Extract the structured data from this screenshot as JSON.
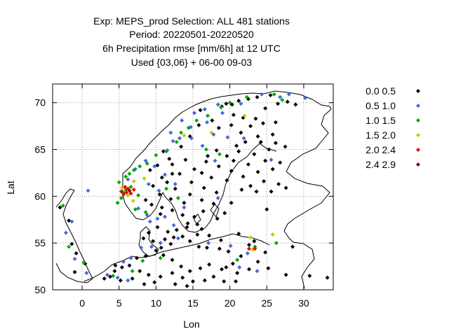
{
  "chart_data": {
    "type": "scatter",
    "title": [
      "Exp: MEPS_prod   Selection: ALL    481 stations",
      "Period: 20220501-20220520",
      "6h Precipitation rmse [mm/6h] at  12 UTC",
      "Used {03,06} + 06-00 09-03"
    ],
    "xlabel": "Lon",
    "ylabel": "Lat",
    "xlim": [
      -4,
      34
    ],
    "ylim": [
      50,
      72
    ],
    "xticks": [
      0,
      5,
      10,
      15,
      20,
      25,
      30
    ],
    "yticks": [
      50,
      55,
      60,
      65,
      70
    ],
    "grid": true,
    "legend_position": "right",
    "series": [
      {
        "name": "0.0 0.5",
        "color": "#000000",
        "points": [
          [
            16,
            69.2
          ],
          [
            18.9,
            69.6
          ],
          [
            19.5,
            69.9
          ],
          [
            20.3,
            69.8
          ],
          [
            21.2,
            70.2
          ],
          [
            22.5,
            70.4
          ],
          [
            23.7,
            70.6
          ],
          [
            25.5,
            70.8
          ],
          [
            24.8,
            69.4
          ],
          [
            26.5,
            69.9
          ],
          [
            27.8,
            70.1
          ],
          [
            28.9,
            69.8
          ],
          [
            20.5,
            68.7
          ],
          [
            21.8,
            68.4
          ],
          [
            23.5,
            68.3
          ],
          [
            24.5,
            67.8
          ],
          [
            26.2,
            67.9
          ],
          [
            22.8,
            67.5
          ],
          [
            20.2,
            67.6
          ],
          [
            18.5,
            67.3
          ],
          [
            21.5,
            66.8
          ],
          [
            23.8,
            66.4
          ],
          [
            25.8,
            66.6
          ],
          [
            22.1,
            65.8
          ],
          [
            20.9,
            65.4
          ],
          [
            24.2,
            65.8
          ],
          [
            26.2,
            65.7
          ],
          [
            27.5,
            65.3
          ],
          [
            25.3,
            65.0
          ],
          [
            23.3,
            64.5
          ],
          [
            21.2,
            64.8
          ],
          [
            19.6,
            64.3
          ],
          [
            18.2,
            64.9
          ],
          [
            17.0,
            64.3
          ],
          [
            20.5,
            63.8
          ],
          [
            22.5,
            63.4
          ],
          [
            24.8,
            63.8
          ],
          [
            26.8,
            63.6
          ],
          [
            25.8,
            62.9
          ],
          [
            23.8,
            62.6
          ],
          [
            21.8,
            62.1
          ],
          [
            20.2,
            62.7
          ],
          [
            18.5,
            63.2
          ],
          [
            16.8,
            63.7
          ],
          [
            16.2,
            62.5
          ],
          [
            17.5,
            62.0
          ],
          [
            19.6,
            61.7
          ],
          [
            22.8,
            61.1
          ],
          [
            24.6,
            61.6
          ],
          [
            26.6,
            61.3
          ],
          [
            27.6,
            60.9
          ],
          [
            25.6,
            60.5
          ],
          [
            23.6,
            60.5
          ],
          [
            21.6,
            60.7
          ],
          [
            18.2,
            60.4
          ],
          [
            16.5,
            60.9
          ],
          [
            14.8,
            61.5
          ],
          [
            13.2,
            62.4
          ],
          [
            12.2,
            63.4
          ],
          [
            14.0,
            63.9
          ],
          [
            15.2,
            62.9
          ],
          [
            11.5,
            61.5
          ],
          [
            12.6,
            60.8
          ],
          [
            14.6,
            60.2
          ],
          [
            16.2,
            59.6
          ],
          [
            17.8,
            59.2
          ],
          [
            13.8,
            59.3
          ],
          [
            12.0,
            59.7
          ],
          [
            10.5,
            60.2
          ],
          [
            9.6,
            61.1
          ],
          [
            10.8,
            62.0
          ],
          [
            9.2,
            62.8
          ],
          [
            10.2,
            63.3
          ],
          [
            8.6,
            59.6
          ],
          [
            9.4,
            59.1
          ],
          [
            10.8,
            58.8
          ],
          [
            12.2,
            58.5
          ],
          [
            13.6,
            58.0
          ],
          [
            15.2,
            57.8
          ],
          [
            16.4,
            58.4
          ],
          [
            18.3,
            57.6
          ],
          [
            15.6,
            57.0
          ],
          [
            14.2,
            56.7
          ],
          [
            12.8,
            56.4
          ],
          [
            13.6,
            55.7
          ],
          [
            11.6,
            56.2
          ],
          [
            10.2,
            56.7
          ],
          [
            9.0,
            56.1
          ],
          [
            8.3,
            55.5
          ],
          [
            9.6,
            55.2
          ],
          [
            11.2,
            55.4
          ],
          [
            12.4,
            55.6
          ],
          [
            14.6,
            55.2
          ],
          [
            15.8,
            54.6
          ],
          [
            16.9,
            54.5
          ],
          [
            18.6,
            54.4
          ],
          [
            19.8,
            54.1
          ],
          [
            21.5,
            53.6
          ],
          [
            20.4,
            52.8
          ],
          [
            22.6,
            52.2
          ],
          [
            23.8,
            53.0
          ],
          [
            21.0,
            51.8
          ],
          [
            18.9,
            52.2
          ],
          [
            17.2,
            52.7
          ],
          [
            16.0,
            52.3
          ],
          [
            14.6,
            52.0
          ],
          [
            13.4,
            52.5
          ],
          [
            12.2,
            53.2
          ],
          [
            11.0,
            53.7
          ],
          [
            10.0,
            54.2
          ],
          [
            8.6,
            53.6
          ],
          [
            7.4,
            53.4
          ],
          [
            6.4,
            52.6
          ],
          [
            5.4,
            52.4
          ],
          [
            4.4,
            52.0
          ],
          [
            7.8,
            52.0
          ],
          [
            9.0,
            51.6
          ],
          [
            10.6,
            51.4
          ],
          [
            12.2,
            51.8
          ],
          [
            13.6,
            51.3
          ],
          [
            15.0,
            50.9
          ],
          [
            16.6,
            51.0
          ],
          [
            17.8,
            51.4
          ],
          [
            19.2,
            50.9
          ],
          [
            20.8,
            50.9
          ],
          [
            14.2,
            50.4
          ],
          [
            12.6,
            50.6
          ],
          [
            9.8,
            50.8
          ],
          [
            8.4,
            50.6
          ],
          [
            6.8,
            51.2
          ],
          [
            5.2,
            51.0
          ],
          [
            3.8,
            51.4
          ],
          [
            30.8,
            51.5
          ],
          [
            33.2,
            51.3
          ],
          [
            28.5,
            54.6
          ],
          [
            27.6,
            51.6
          ],
          [
            25.2,
            52.3
          ],
          [
            24.8,
            54.0
          ],
          [
            22.6,
            54.8
          ],
          [
            18.8,
            55.3
          ],
          [
            17.2,
            55.8
          ],
          [
            15.6,
            55.9
          ],
          [
            12.0,
            54.9
          ],
          [
            10.7,
            54.5
          ],
          [
            4.5,
            52.6
          ],
          [
            3.0,
            51.2
          ],
          [
            -3.0,
            58.8
          ],
          [
            -1.8,
            57.4
          ],
          [
            -1.4,
            54.9
          ],
          [
            -0.8,
            53.9
          ],
          [
            0.4,
            52.8
          ],
          [
            -1.0,
            51.9
          ],
          [
            11.0,
            64.8
          ],
          [
            13.4,
            65.3
          ],
          [
            14.6,
            66.4
          ],
          [
            15.8,
            67.6
          ],
          [
            17.6,
            68.1
          ],
          [
            12.2,
            62.4
          ],
          [
            11.8,
            64.0
          ],
          [
            10.6,
            58.1
          ],
          [
            16.2,
            56.5
          ],
          [
            14.3,
            57.1
          ],
          [
            19.3,
            58.2
          ],
          [
            20.2,
            59.3
          ],
          [
            25.0,
            58.6
          ],
          [
            21.2,
            56.0
          ],
          [
            23.3,
            55.2
          ],
          [
            19.5,
            52.4
          ]
        ]
      },
      {
        "name": "0.5 1.0",
        "color": "#4169e1",
        "points": [
          [
            13.5,
            68.1
          ],
          [
            15.2,
            68.9
          ],
          [
            16.6,
            69.3
          ],
          [
            18.4,
            69.8
          ],
          [
            14.7,
            67.4
          ],
          [
            13.2,
            66.2
          ],
          [
            12.3,
            65.9
          ],
          [
            11.4,
            64.8
          ],
          [
            12.0,
            66.8
          ],
          [
            14.8,
            66.2
          ],
          [
            17.8,
            66.6
          ],
          [
            16.9,
            67.9
          ],
          [
            26.8,
            70.6
          ],
          [
            28.0,
            70.9
          ],
          [
            30.2,
            70.5
          ],
          [
            24.3,
            70.9
          ],
          [
            21.5,
            69.9
          ],
          [
            19.0,
            68.9
          ],
          [
            8.6,
            63.8
          ],
          [
            9.8,
            63.2
          ],
          [
            7.2,
            62.9
          ],
          [
            6.2,
            61.8
          ],
          [
            9.0,
            61.3
          ],
          [
            10.4,
            60.6
          ],
          [
            11.2,
            62.3
          ],
          [
            12.6,
            61.3
          ],
          [
            7.6,
            58.7
          ],
          [
            8.8,
            58.0
          ],
          [
            9.2,
            57.3
          ],
          [
            10.2,
            57.6
          ],
          [
            11.2,
            57.8
          ],
          [
            12.4,
            56.9
          ],
          [
            13.0,
            55.5
          ],
          [
            10.6,
            55.0
          ],
          [
            9.4,
            54.6
          ],
          [
            8.0,
            54.5
          ],
          [
            6.6,
            53.4
          ],
          [
            5.6,
            53.0
          ],
          [
            3.4,
            51.6
          ],
          [
            4.8,
            51.3
          ],
          [
            6.2,
            51.0
          ],
          [
            20.1,
            54.7
          ],
          [
            22.4,
            53.9
          ],
          [
            21.3,
            52.4
          ],
          [
            23.7,
            52.0
          ],
          [
            0.8,
            60.6
          ],
          [
            -1.4,
            57.3
          ],
          [
            -2.2,
            56.1
          ],
          [
            -1.0,
            53.3
          ],
          [
            0.6,
            51.8
          ],
          [
            16.3,
            65.4
          ],
          [
            18.0,
            63.8
          ],
          [
            21.9,
            66.2
          ],
          [
            19.7,
            66.3
          ],
          [
            25.6,
            63.9
          ],
          [
            13.8,
            58.8
          ],
          [
            18.4,
            59.8
          ],
          [
            17.1,
            55.0
          ]
        ]
      },
      {
        "name": "1.0 1.5",
        "color": "#00aa00",
        "points": [
          [
            4.8,
            59.3
          ],
          [
            5.3,
            59.8
          ],
          [
            5.6,
            60.4
          ],
          [
            5.0,
            61.5
          ],
          [
            5.9,
            62.1
          ],
          [
            6.4,
            62.4
          ],
          [
            7.0,
            62.8
          ],
          [
            7.8,
            63.2
          ],
          [
            8.8,
            63.5
          ],
          [
            10.0,
            64.4
          ],
          [
            11.5,
            64.9
          ],
          [
            12.8,
            65.8
          ],
          [
            13.4,
            66.8
          ],
          [
            14.4,
            67.3
          ],
          [
            15.5,
            68.1
          ],
          [
            17.0,
            68.6
          ],
          [
            18.8,
            69.5
          ],
          [
            20.0,
            70.0
          ],
          [
            22.3,
            70.6
          ],
          [
            26.0,
            70.9
          ],
          [
            27.1,
            70.3
          ],
          [
            5.9,
            60.7
          ],
          [
            6.6,
            61.0
          ],
          [
            7.6,
            60.1
          ],
          [
            7.2,
            58.6
          ],
          [
            8.6,
            58.3
          ],
          [
            -2.6,
            59.0
          ],
          [
            -1.8,
            54.6
          ],
          [
            0.2,
            52.9
          ],
          [
            4.2,
            51.5
          ],
          [
            6.8,
            52.0
          ],
          [
            8.2,
            53.1
          ],
          [
            10.6,
            53.4
          ],
          [
            21.0,
            53.2
          ],
          [
            23.4,
            54.6
          ],
          [
            26.3,
            55.0
          ],
          [
            16.8,
            65.0
          ],
          [
            18.6,
            64.5
          ],
          [
            11.4,
            60.8
          ],
          [
            13.0,
            59.8
          ]
        ]
      },
      {
        "name": "1.5 2.0",
        "color": "#c8c800",
        "points": [
          [
            22.0,
            68.6
          ],
          [
            17.5,
            66.8
          ],
          [
            6.2,
            60.1
          ],
          [
            5.4,
            60.9
          ],
          [
            7.0,
            61.6
          ],
          [
            25.8,
            55.9
          ],
          [
            22.8,
            55.6
          ],
          [
            23.1,
            54.3
          ],
          [
            8.4,
            61.9
          ],
          [
            13.8,
            66.5
          ],
          [
            6.9,
            59.5
          ]
        ]
      },
      {
        "name": "2.0 2.4",
        "color": "#ee0000",
        "points": [
          [
            5.3,
            60.5
          ],
          [
            5.8,
            61.0
          ],
          [
            6.2,
            60.8
          ],
          [
            6.6,
            60.3
          ],
          [
            5.6,
            60.2
          ],
          [
            7.0,
            60.7
          ],
          [
            6.0,
            60.4
          ],
          [
            22.6,
            54.4
          ],
          [
            23.4,
            54.4
          ]
        ]
      },
      {
        "name": "2.4 2.9",
        "color": "#8b0000",
        "points": [
          [
            6.4,
            60.6
          ]
        ]
      }
    ]
  }
}
